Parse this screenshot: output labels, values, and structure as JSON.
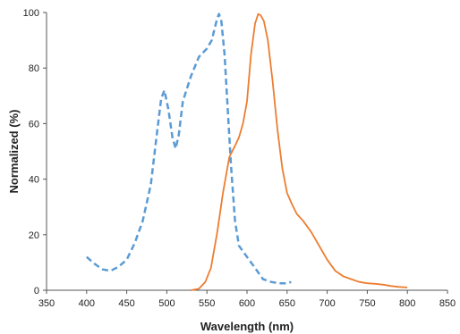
{
  "chart_data": {
    "type": "line",
    "xlabel": "Wavelength (nm)",
    "ylabel": "Normalized (%)",
    "xlim": [
      350,
      850
    ],
    "ylim": [
      0,
      100
    ],
    "x_ticks": [
      350,
      400,
      450,
      500,
      550,
      600,
      650,
      700,
      750,
      800,
      850
    ],
    "y_ticks": [
      0,
      20,
      40,
      60,
      80,
      100
    ],
    "grid": false,
    "series": [
      {
        "color": "#5B9BD5",
        "line_style": "dashed",
        "points": [
          [
            400,
            12
          ],
          [
            410,
            9.5
          ],
          [
            420,
            7.5
          ],
          [
            430,
            7
          ],
          [
            440,
            8.5
          ],
          [
            450,
            11
          ],
          [
            460,
            17
          ],
          [
            470,
            25
          ],
          [
            480,
            38
          ],
          [
            487,
            55
          ],
          [
            493,
            69
          ],
          [
            497,
            72
          ],
          [
            502,
            65
          ],
          [
            507,
            55
          ],
          [
            511,
            51
          ],
          [
            515,
            56
          ],
          [
            520,
            68
          ],
          [
            530,
            77
          ],
          [
            540,
            84
          ],
          [
            550,
            87
          ],
          [
            556,
            90
          ],
          [
            562,
            97
          ],
          [
            565,
            99.5
          ],
          [
            568,
            97
          ],
          [
            572,
            85
          ],
          [
            576,
            65
          ],
          [
            580,
            45
          ],
          [
            585,
            25
          ],
          [
            590,
            16
          ],
          [
            600,
            12
          ],
          [
            610,
            8
          ],
          [
            620,
            4
          ],
          [
            630,
            3
          ],
          [
            640,
            2.5
          ],
          [
            650,
            2.5
          ],
          [
            655,
            3
          ]
        ]
      },
      {
        "color": "#ED7D31",
        "line_style": "solid",
        "points": [
          [
            530,
            0
          ],
          [
            540,
            0.5
          ],
          [
            548,
            3
          ],
          [
            555,
            8
          ],
          [
            563,
            21
          ],
          [
            570,
            35
          ],
          [
            578,
            48
          ],
          [
            585,
            52
          ],
          [
            590,
            55
          ],
          [
            595,
            60
          ],
          [
            600,
            68
          ],
          [
            605,
            85
          ],
          [
            610,
            96
          ],
          [
            614,
            99.5
          ],
          [
            617,
            99
          ],
          [
            621,
            97
          ],
          [
            626,
            90
          ],
          [
            632,
            75
          ],
          [
            638,
            58
          ],
          [
            644,
            44
          ],
          [
            650,
            35
          ],
          [
            656,
            31
          ],
          [
            662,
            27.5
          ],
          [
            670,
            25
          ],
          [
            680,
            21
          ],
          [
            690,
            16
          ],
          [
            700,
            11
          ],
          [
            710,
            7
          ],
          [
            720,
            5
          ],
          [
            730,
            4
          ],
          [
            740,
            3
          ],
          [
            750,
            2.5
          ],
          [
            760,
            2.3
          ],
          [
            770,
            2
          ],
          [
            780,
            1.5
          ],
          [
            790,
            1.2
          ],
          [
            800,
            1
          ]
        ]
      }
    ]
  }
}
